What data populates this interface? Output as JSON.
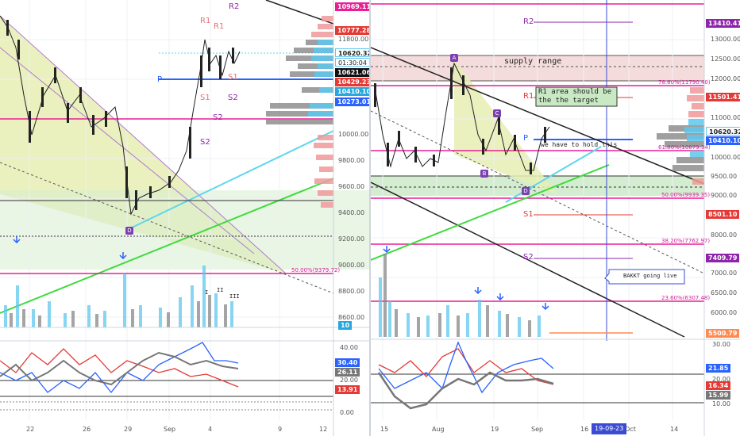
{
  "colors": {
    "magenta": "#e91e96",
    "blue_tag": "#2962ff",
    "cyan_tag": "#26a7de",
    "red_tag": "#e53935",
    "orange_tag": "#ff6d00",
    "purple": "#8e24aa",
    "green": "#00c853",
    "lightblue": "#4dd0e1"
  },
  "left": {
    "price_axis": [
      "13000.00",
      "12800.00",
      "12600.00",
      "12400.00",
      "12200.00",
      "12000.00",
      "11800.00",
      "11600.00",
      "11400.00",
      "11200.00",
      "11000.00",
      "10800.00",
      "10600.00",
      "10400.00",
      "10200.00",
      "10000.00",
      "9800.00",
      "9600.00",
      "9400.00",
      "9200.00",
      "9000.00",
      "8800.00",
      "8600.00"
    ],
    "price_tags": [
      {
        "text": "10969.11",
        "color": "magenta"
      },
      {
        "text": "10777.28",
        "color": "red_tag"
      },
      {
        "text": "10620.32",
        "color": "lightblue_text"
      },
      {
        "text": "01:30:04",
        "color": "lightblue_text"
      },
      {
        "text": "10621.06",
        "color": "black"
      },
      {
        "text": "10429.23",
        "color": "red_tag"
      },
      {
        "text": "10410.10",
        "color": "blue_tag"
      },
      {
        "text": "10273.01",
        "color": "blue_tag"
      }
    ],
    "pivots": [
      "R2",
      "R1",
      "R1",
      "P",
      "S1",
      "S1",
      "S2",
      "S2",
      "S2"
    ],
    "fib_text": "50.00%(9379.72)",
    "vol_tag": "10",
    "osc_axis": [
      "40.00",
      "30.00",
      "20.00",
      "0.00"
    ],
    "osc_tags": [
      "30.40",
      "26.11",
      "13.91"
    ],
    "dates": [
      "22",
      "26",
      "29",
      "Sep",
      "4",
      "9",
      "12"
    ],
    "markers": [
      "D"
    ],
    "vol_marks": [
      "I",
      "II",
      "III"
    ]
  },
  "right": {
    "price_axis": [
      "13000.00",
      "12500.00",
      "12000.00",
      "11000.00",
      "10500.00",
      "10000.00",
      "9500.00",
      "9000.00",
      "8500.00",
      "8000.00",
      "7500.00",
      "7000.00",
      "6500.00",
      "6000.00"
    ],
    "price_tags": [
      {
        "text": "13410.41"
      },
      {
        "text": "11501.41"
      },
      {
        "text": "10620.32"
      },
      {
        "text": "10410.10"
      },
      {
        "text": "8501.10"
      },
      {
        "text": "7409.79"
      },
      {
        "text": "5500.79"
      }
    ],
    "pivots": [
      "R2",
      "R1",
      "P",
      "S1",
      "S2"
    ],
    "notes": {
      "supply": "supply range",
      "area_line1": "R1   area should be",
      "area_line2": "the the  target",
      "hold": "we have to hold this",
      "bakkt": "BAKKT going live"
    },
    "fibs": [
      "78.60%(11790.40)",
      "61.80%(10879.34)",
      "50.00%(9939.35)",
      "38.20%(7762.97)",
      "23.60%(6307.48)"
    ],
    "markers": [
      "A",
      "B",
      "C",
      "D"
    ],
    "osc_axis": [
      "30.00",
      "20.00",
      "10.00"
    ],
    "osc_tags": [
      "21.85",
      "16.34",
      "15.99"
    ],
    "dates": [
      "15",
      "Aug",
      "19",
      "Sep",
      "16",
      "Oct",
      "14"
    ],
    "datebox": "19-09-23"
  }
}
